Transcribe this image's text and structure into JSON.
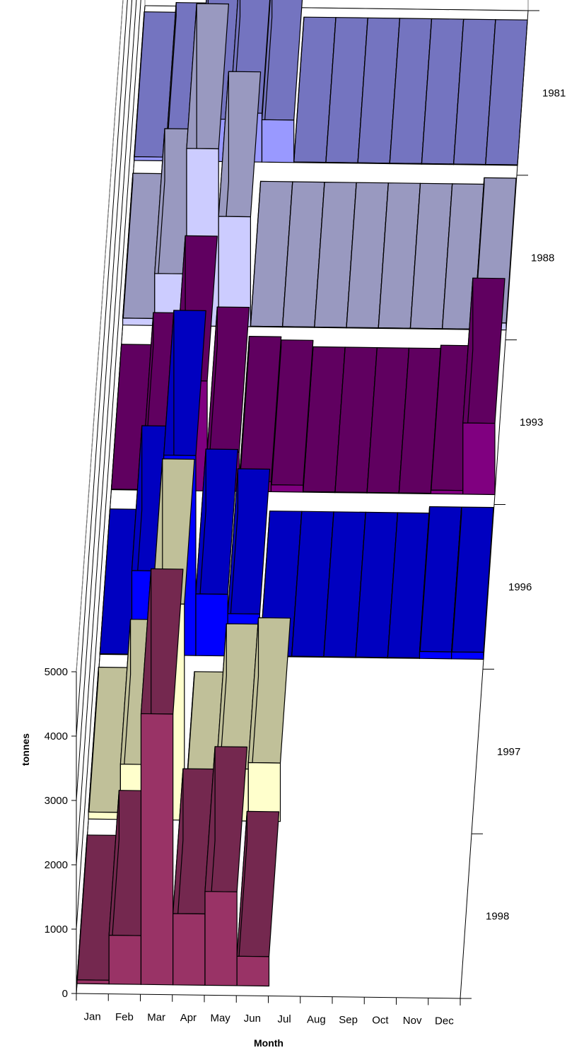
{
  "chart_data": {
    "type": "bar",
    "subtype": "3d-bar-series-depth",
    "xlabel": "Month",
    "ylabel": "tonnes",
    "ylim": [
      0,
      5000
    ],
    "yticks": [
      "0",
      "1000",
      "2000",
      "3000",
      "4000",
      "5000"
    ],
    "categories": [
      "Jan",
      "Feb",
      "Mar",
      "Apr",
      "May",
      "Jun",
      "Jul",
      "Aug",
      "Sep",
      "Oct",
      "Nov",
      "Dec"
    ],
    "series": [
      {
        "name": "1998",
        "values": [
          50,
          750,
          4200,
          1100,
          1450,
          450,
          null,
          null,
          null,
          null,
          null,
          null
        ],
        "front": "#993366",
        "top": "#74284f"
      },
      {
        "name": "1997",
        "values": [
          100,
          850,
          3350,
          50,
          800,
          900,
          null,
          null,
          null,
          null,
          null,
          null
        ],
        "front": "#ffffcc",
        "top": "#c0c099"
      },
      {
        "name": "1996",
        "values": [
          0,
          1300,
          3100,
          950,
          650,
          0,
          0,
          0,
          0,
          0,
          100,
          100
        ],
        "front": "#0000ff",
        "top": "#0000c0"
      },
      {
        "name": "1993",
        "values": [
          0,
          500,
          1700,
          600,
          150,
          100,
          0,
          0,
          0,
          0,
          50,
          1100
        ],
        "front": "#800080",
        "top": "#600060"
      },
      {
        "name": "1988",
        "values": [
          100,
          800,
          2750,
          1700,
          0,
          0,
          0,
          0,
          0,
          0,
          0,
          100
        ],
        "front": "#ccccff",
        "top": "#9999c0"
      },
      {
        "name": "1981",
        "values": [
          50,
          200,
          650,
          750,
          650,
          0,
          0,
          0,
          0,
          0,
          0,
          0
        ],
        "front": "#9999ff",
        "top": "#7474c0"
      }
    ],
    "grid": true,
    "legend": "none"
  }
}
